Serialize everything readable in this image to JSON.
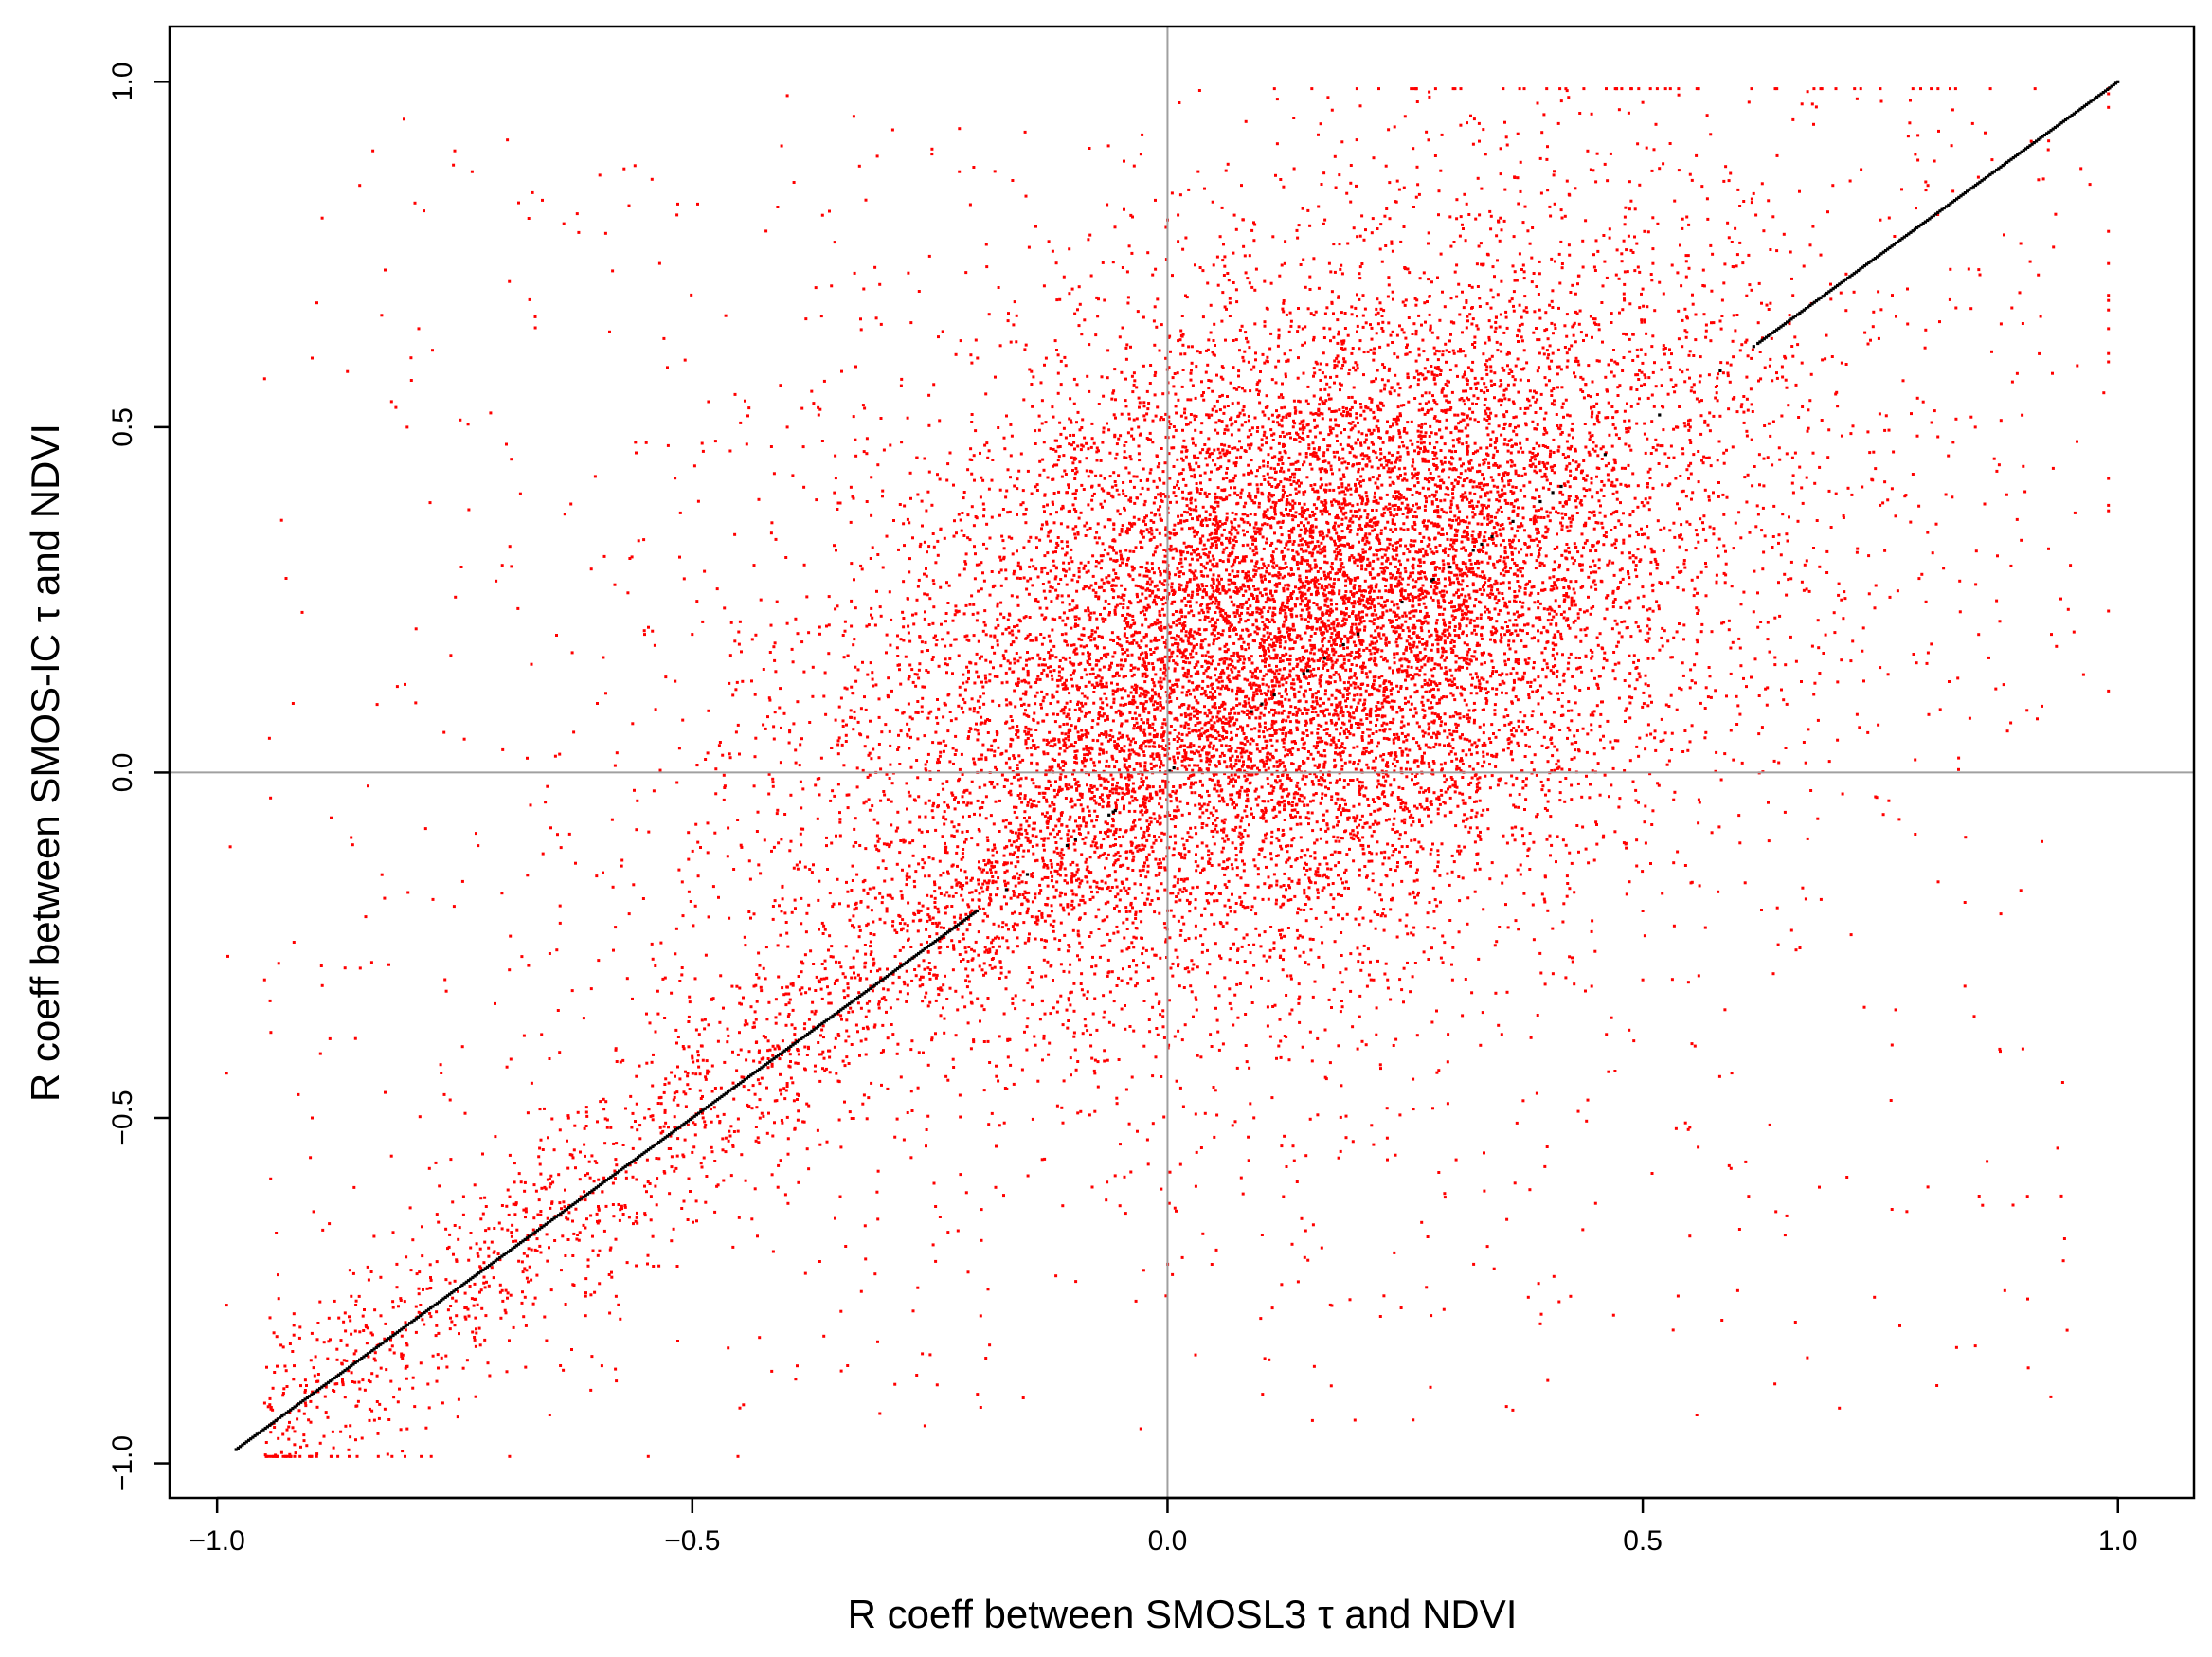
{
  "chart_data": {
    "type": "scatter",
    "title": "",
    "xlabel": "R coeff between SMOSL3 τ and NDVI",
    "ylabel": "R coeff between SMOS-IC τ and NDVI",
    "xlim": [
      -1.05,
      1.08
    ],
    "ylim": [
      -1.05,
      1.08
    ],
    "x_ticks": [
      -1.0,
      -0.5,
      0.0,
      0.5,
      1.0
    ],
    "y_ticks": [
      -1.0,
      -0.5,
      0.0,
      0.5,
      1.0
    ],
    "x_tick_labels": [
      "−1.0",
      "−0.5",
      "0.0",
      "0.5",
      "1.0"
    ],
    "y_tick_labels": [
      "−1.0",
      "−0.5",
      "0.0",
      "0.5",
      "1.0"
    ],
    "reference_lines": {
      "x": 0.0,
      "y": 0.0,
      "color": "#a0a0a0"
    },
    "grid": false,
    "legend": "none",
    "series": [
      {
        "style": "scattered points",
        "color": "#ff0000",
        "approx_count": 60000,
        "dense_core_x_range": [
          -0.25,
          0.55
        ],
        "dense_core_y_range": [
          -0.3,
          0.7
        ],
        "cluster_center": [
          0.15,
          0.25
        ],
        "points": [
          [
            0.15,
            0.3
          ],
          [
            0.3,
            0.55
          ],
          [
            0.05,
            0.1
          ],
          [
            -0.1,
            -0.05
          ],
          [
            0.4,
            0.6
          ],
          [
            0.2,
            0.2
          ],
          [
            0.35,
            0.4
          ],
          [
            -0.05,
            0.3
          ],
          [
            0.25,
            -0.05
          ],
          [
            0.1,
            0.5
          ],
          [
            0.5,
            0.7
          ],
          [
            -0.2,
            0.0
          ],
          [
            0.0,
            -0.2
          ],
          [
            0.45,
            0.3
          ],
          [
            0.6,
            0.75
          ],
          [
            -0.3,
            -0.3
          ],
          [
            -0.4,
            -0.45
          ],
          [
            -0.5,
            -0.55
          ],
          [
            -0.6,
            -0.65
          ],
          [
            -0.7,
            -0.75
          ],
          [
            -0.75,
            -0.8
          ],
          [
            -0.65,
            -0.6
          ],
          [
            -0.55,
            -0.5
          ],
          [
            0.7,
            0.85
          ],
          [
            0.8,
            0.85
          ],
          [
            0.75,
            0.8
          ],
          [
            0.65,
            0.6
          ],
          [
            0.55,
            0.5
          ],
          [
            0.3,
            -0.3
          ],
          [
            0.4,
            -0.2
          ],
          [
            0.5,
            -0.3
          ],
          [
            0.2,
            -0.4
          ],
          [
            -0.3,
            0.4
          ],
          [
            -0.4,
            0.5
          ],
          [
            -0.2,
            0.6
          ],
          [
            -0.1,
            0.7
          ],
          [
            0.0,
            0.8
          ],
          [
            -0.5,
            0.2
          ],
          [
            -0.6,
            0.1
          ],
          [
            -0.7,
            0.3
          ],
          [
            -0.8,
            0.5
          ],
          [
            -0.9,
            0.6
          ],
          [
            -0.85,
            0.85
          ],
          [
            -0.75,
            0.9
          ],
          [
            -0.4,
            0.98
          ],
          [
            -0.33,
            0.95
          ],
          [
            0.8,
            -0.6
          ],
          [
            0.9,
            -0.4
          ],
          [
            0.85,
            -0.83
          ],
          [
            0.6,
            -0.75
          ],
          [
            0.4,
            -0.88
          ],
          [
            0.1,
            -0.9
          ],
          [
            -0.2,
            -0.9
          ],
          [
            -0.45,
            -0.92
          ],
          [
            -0.65,
            -0.93
          ],
          [
            -0.8,
            -0.95
          ],
          [
            0.95,
            0.3
          ],
          [
            0.93,
            0.2
          ],
          [
            0.92,
            -0.1
          ],
          [
            0.85,
            0.5
          ],
          [
            0.9,
            0.65
          ],
          [
            0.5,
            0.97
          ],
          [
            0.25,
            0.95
          ],
          [
            0.75,
            0.99
          ],
          [
            -0.95,
            -0.3
          ],
          [
            -0.9,
            -0.5
          ],
          [
            -0.92,
            0.1
          ],
          [
            -0.95,
            0.57
          ]
        ]
      },
      {
        "style": "points on 1:1 line",
        "color": "#000000",
        "x_range": [
          -0.98,
          1.0
        ],
        "y_equals_x": true
      }
    ]
  }
}
